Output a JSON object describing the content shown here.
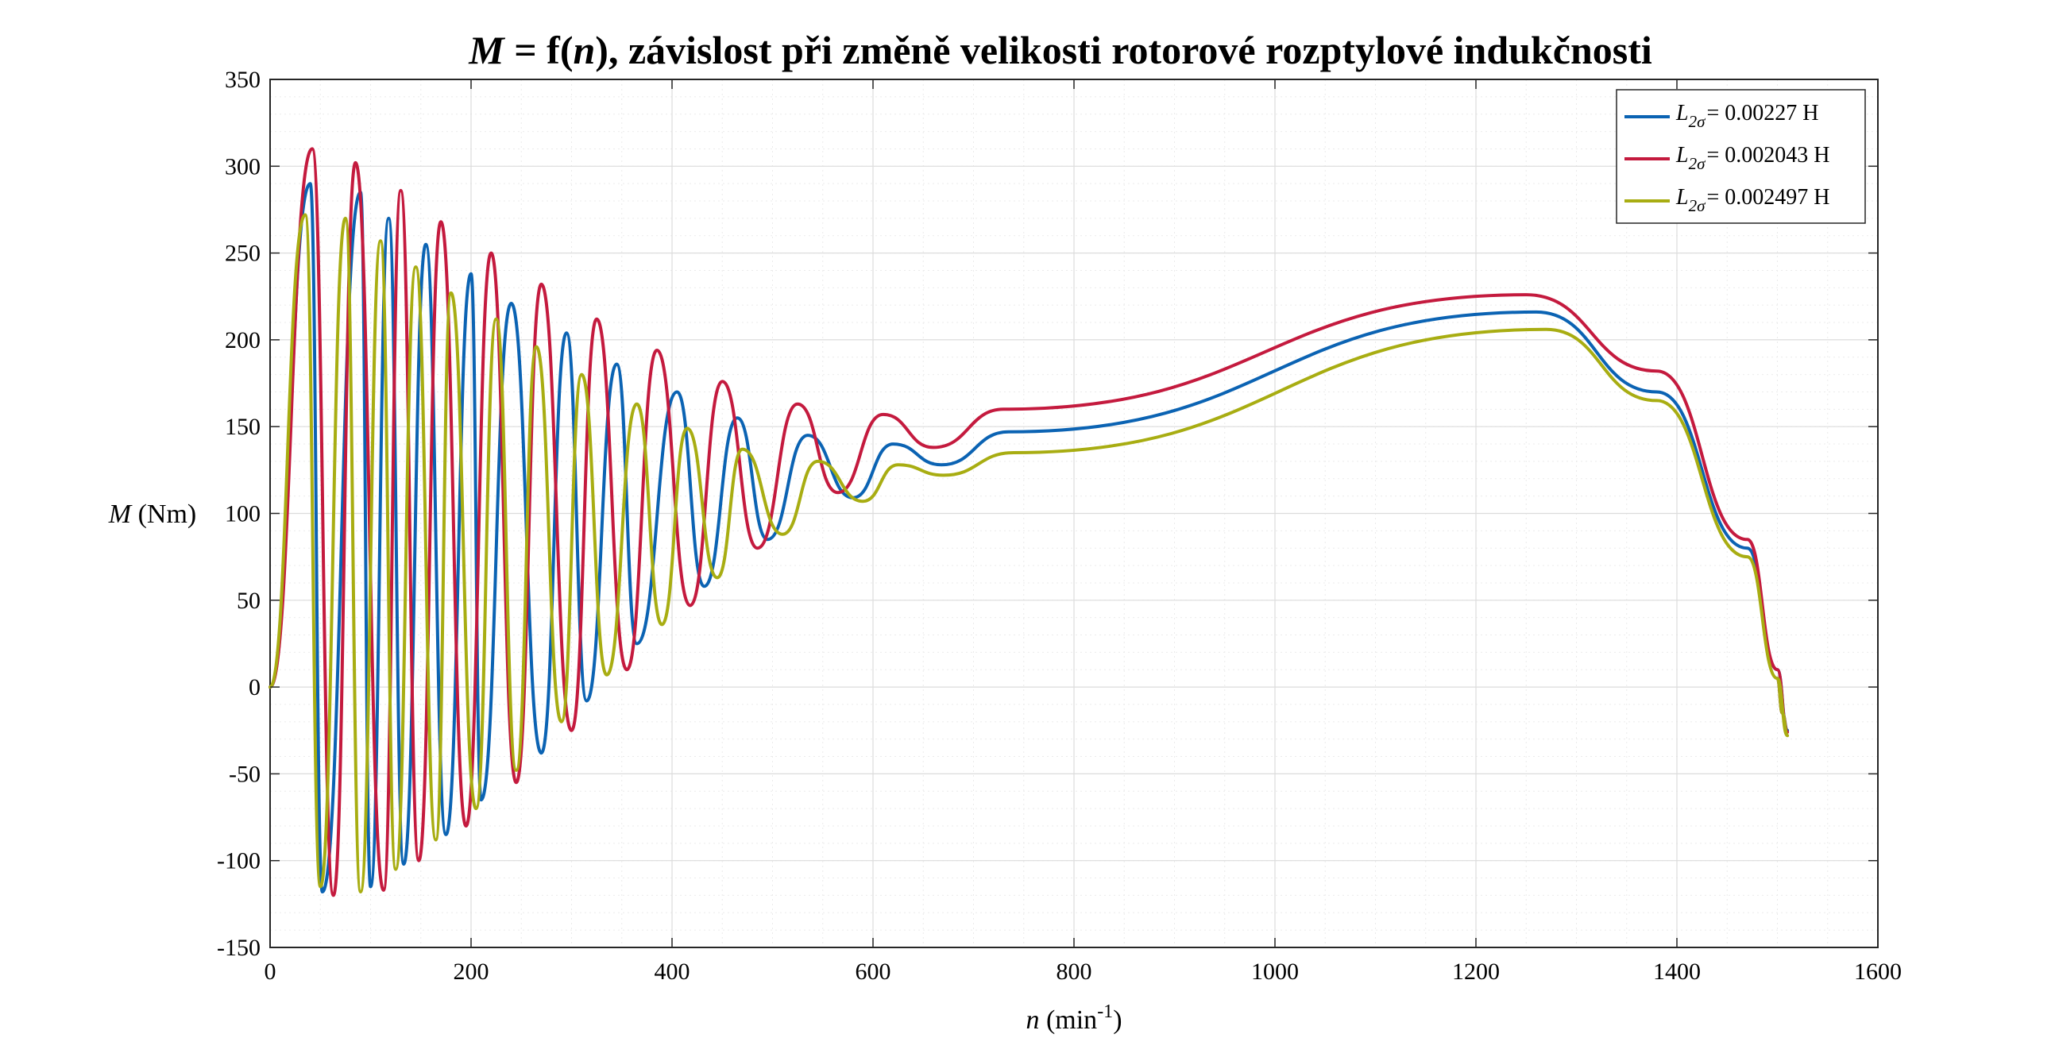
{
  "chart_data": {
    "type": "line",
    "title": {
      "var": "M",
      "eq": " = f(",
      "arg": "n",
      "rest": "), závislost při změně velikosti rotorové rozptylové indukčnosti"
    },
    "xlabel": {
      "var": "n",
      "unit": " (min",
      "exp": "-1",
      "close": ")"
    },
    "ylabel": {
      "var": "M",
      "unit": " (Nm)"
    },
    "xlim": [
      0,
      1600
    ],
    "ylim": [
      -150,
      350
    ],
    "xticks": [
      0,
      200,
      400,
      600,
      800,
      1000,
      1200,
      1400,
      1600
    ],
    "yticks": [
      -150,
      -100,
      -50,
      0,
      50,
      100,
      150,
      200,
      250,
      300,
      350
    ],
    "grid": true,
    "minor_grid": true,
    "legend_position": "top-right",
    "series": [
      {
        "name": "L2σ = 0.00227 H",
        "legend_symbol": "L",
        "legend_sub": "2σ",
        "legend_value": "= 0.00227 H",
        "color": "#0b63b3",
        "peak_n": [
          0,
          40,
          90,
          118,
          155,
          200,
          240,
          295,
          345,
          405,
          465,
          535,
          620,
          735,
          1260
        ],
        "peak_m": [
          0,
          290,
          285,
          270,
          255,
          238,
          221,
          204,
          186,
          170,
          155,
          145,
          140,
          147,
          216
        ],
        "trough_n": [
          52,
          100,
          133,
          175,
          210,
          270,
          315,
          365,
          432,
          495,
          580,
          668
        ],
        "trough_m": [
          -118,
          -115,
          -102,
          -85,
          -65,
          -38,
          -8,
          25,
          58,
          85,
          109,
          128
        ],
        "tail_n": [
          1380,
          1470,
          1500,
          1510,
          1505,
          1500
        ],
        "tail_m": [
          170,
          80,
          10,
          -25,
          -15,
          5
        ]
      },
      {
        "name": "L2σ = 0.002043 H",
        "legend_symbol": "L",
        "legend_sub": "2σ",
        "legend_value": "= 0.002043 H",
        "color": "#c41a3e",
        "peak_n": [
          0,
          42,
          85,
          130,
          170,
          220,
          270,
          325,
          385,
          450,
          525,
          610,
          730,
          1250
        ],
        "peak_m": [
          0,
          310,
          302,
          286,
          268,
          250,
          232,
          212,
          194,
          176,
          163,
          157,
          160,
          226
        ],
        "trough_n": [
          63,
          113,
          148,
          195,
          245,
          300,
          355,
          418,
          485,
          565,
          660
        ],
        "trough_m": [
          -120,
          -117,
          -100,
          -80,
          -55,
          -25,
          10,
          47,
          80,
          112,
          138
        ],
        "tail_n": [
          1380,
          1470,
          1500,
          1510,
          1505,
          1500
        ],
        "tail_m": [
          182,
          85,
          10,
          -26,
          -15,
          5
        ]
      },
      {
        "name": "L2σ = 0.002497 H",
        "legend_symbol": "L",
        "legend_sub": "2σ",
        "legend_value": "= 0.002497 H",
        "color": "#a8ad12",
        "peak_n": [
          0,
          35,
          75,
          110,
          145,
          180,
          225,
          265,
          310,
          365,
          415,
          470,
          545,
          625,
          740,
          1270
        ],
        "peak_m": [
          0,
          272,
          270,
          257,
          242,
          227,
          212,
          196,
          180,
          163,
          149,
          137,
          130,
          128,
          135,
          206
        ],
        "trough_n": [
          50,
          90,
          125,
          165,
          205,
          245,
          290,
          335,
          390,
          445,
          510,
          590,
          670
        ],
        "trough_m": [
          -115,
          -118,
          -105,
          -88,
          -70,
          -48,
          -20,
          7,
          36,
          63,
          88,
          107,
          122
        ],
        "tail_n": [
          1380,
          1470,
          1500,
          1510,
          1505,
          1500
        ],
        "tail_m": [
          165,
          75,
          5,
          -28,
          -15,
          5
        ]
      }
    ]
  }
}
